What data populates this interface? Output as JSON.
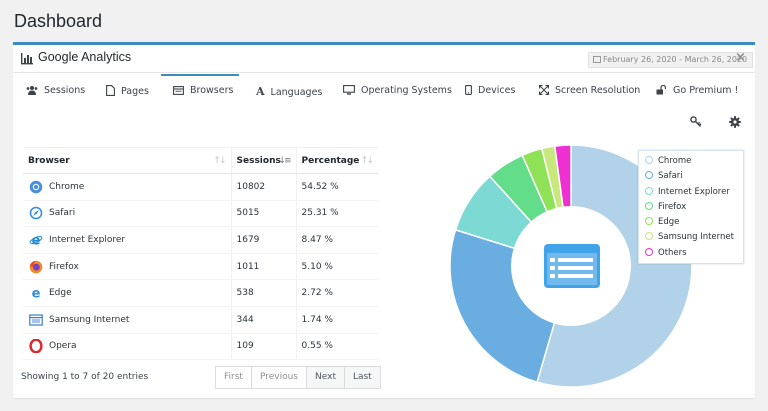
{
  "page": {
    "title": "Dashboard"
  },
  "panel": {
    "title": "Google Analytics",
    "date_range": "February 26, 2020 - March 26, 2020",
    "close_label": "×"
  },
  "tabs": [
    {
      "label": "Sessions",
      "icon": "users-icon",
      "active": false
    },
    {
      "label": "Pages",
      "icon": "page-icon",
      "active": false
    },
    {
      "label": "Browsers",
      "icon": "browser-window-icon",
      "active": true
    },
    {
      "label": "Languages",
      "icon": "font-icon",
      "active": false
    },
    {
      "label": "Operating Systems",
      "icon": "desktop-icon",
      "active": false
    },
    {
      "label": "Devices",
      "icon": "mobile-icon",
      "active": false
    },
    {
      "label": "Screen Resolution",
      "icon": "expand-icon",
      "active": false
    },
    {
      "label": "Go Premium !",
      "icon": "unlock-icon",
      "active": false
    }
  ],
  "toolbar": {
    "key_icon": "key-icon",
    "settings_icon": "gear-icon"
  },
  "table": {
    "headers": {
      "browser": "Browser",
      "sessions": "Sessions",
      "percentage": "Percentage"
    },
    "rows": [
      {
        "browser": "Chrome",
        "sessions": "10802",
        "percentage": "54.52 %",
        "icon": "chrome-icon"
      },
      {
        "browser": "Safari",
        "sessions": "5015",
        "percentage": "25.31 %",
        "icon": "safari-icon"
      },
      {
        "browser": "Internet Explorer",
        "sessions": "1679",
        "percentage": "8.47 %",
        "icon": "internet-explorer-icon"
      },
      {
        "browser": "Firefox",
        "sessions": "1011",
        "percentage": "5.10 %",
        "icon": "firefox-icon"
      },
      {
        "browser": "Edge",
        "sessions": "538",
        "percentage": "2.72 %",
        "icon": "edge-icon"
      },
      {
        "browser": "Samsung Internet",
        "sessions": "344",
        "percentage": "1.74 %",
        "icon": "samsung-internet-icon"
      },
      {
        "browser": "Opera",
        "sessions": "109",
        "percentage": "0.55 %",
        "icon": "opera-icon"
      }
    ],
    "info": "Showing 1 to 7 of 20 entries",
    "pager": {
      "first": "First",
      "previous": "Previous",
      "next": "Next",
      "last": "Last"
    }
  },
  "chart_data": {
    "type": "pie",
    "donut": true,
    "categories": [
      "Chrome",
      "Safari",
      "Internet Explorer",
      "Firefox",
      "Edge",
      "Samsung Internet",
      "Others"
    ],
    "values": [
      54.52,
      25.31,
      8.47,
      5.1,
      2.72,
      1.74,
      2.14
    ],
    "colors": [
      "#b2d2e9",
      "#6aaee1",
      "#7dd9d3",
      "#63dd8a",
      "#8fe158",
      "#c8e77c",
      "#ee2fd1"
    ],
    "legend_position": "top-right",
    "center_icon": "list-table-icon"
  },
  "colors": {
    "accent": "#3c8dbc",
    "center_icon": "#41a3e8"
  }
}
